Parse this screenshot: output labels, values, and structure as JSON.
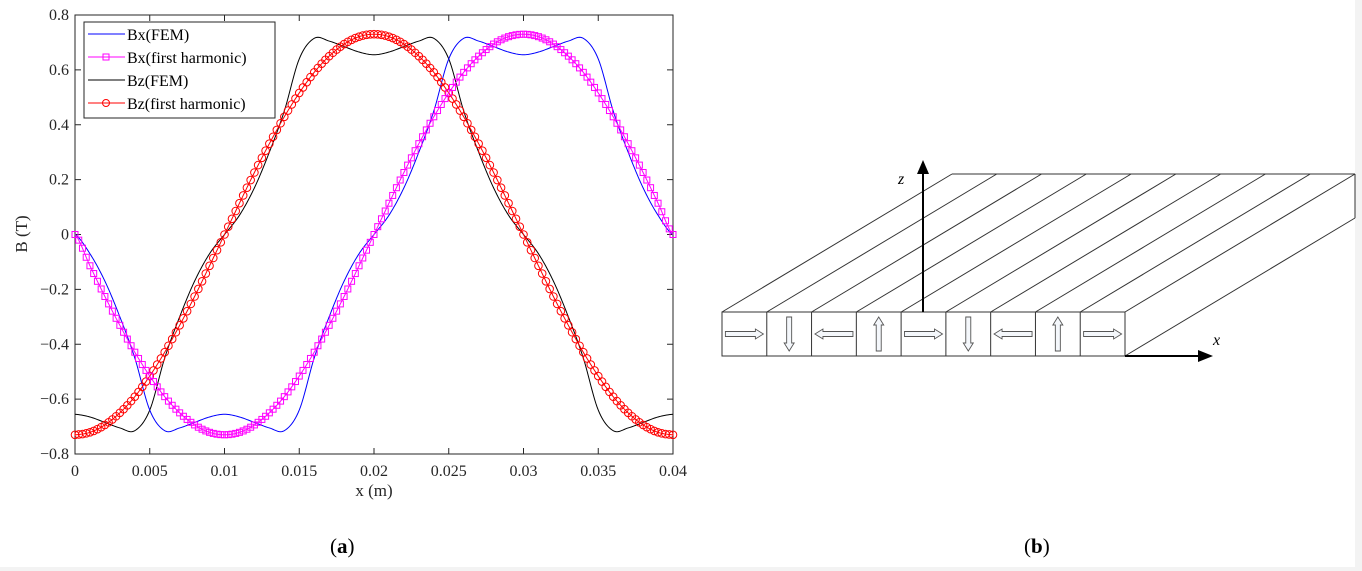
{
  "captions": {
    "a_open": "(",
    "a_letter": "a",
    "a_close": ")",
    "b_open": "(",
    "b_letter": "b",
    "b_close": ")"
  },
  "colors": {
    "bx_fem": "#0000ff",
    "bx_h1": "#ff00ff",
    "bz_fem": "#000000",
    "bz_h1": "#ff0000",
    "axis": "#262626"
  },
  "chart_data": {
    "type": "line",
    "title": "",
    "xlabel": "x (m)",
    "ylabel": "B (T)",
    "xlim": [
      0,
      0.04
    ],
    "ylim": [
      -0.8,
      0.8
    ],
    "xticks": [
      "0",
      "0.005",
      "0.01",
      "0.015",
      "0.02",
      "0.025",
      "0.03",
      "0.035",
      "0.04"
    ],
    "yticks": [
      "0.8",
      "0.6",
      "0.4",
      "0.2",
      "0",
      "-0.2",
      "-0.4",
      "-0.6",
      "-0.8"
    ],
    "grid": false,
    "legend_position": "upper-left",
    "x": [
      0,
      0.001,
      0.002,
      0.003,
      0.004,
      0.005,
      0.006,
      0.007,
      0.008,
      0.009,
      0.01,
      0.011,
      0.012,
      0.013,
      0.014,
      0.015,
      0.016,
      0.017,
      0.018,
      0.019,
      0.02,
      0.021,
      0.022,
      0.023,
      0.024,
      0.025,
      0.026,
      0.027,
      0.028,
      0.029,
      0.03,
      0.031,
      0.032,
      0.033,
      0.034,
      0.035,
      0.036,
      0.037,
      0.038,
      0.039,
      0.04
    ],
    "series": [
      {
        "name": "Bx(FEM)",
        "marker": "none",
        "color": "#0000ff",
        "values": [
          0,
          -0.07,
          -0.17,
          -0.3,
          -0.45,
          -0.64,
          -0.715,
          -0.705,
          -0.685,
          -0.665,
          -0.655,
          -0.665,
          -0.685,
          -0.705,
          -0.715,
          -0.64,
          -0.45,
          -0.3,
          -0.17,
          -0.07,
          0,
          0.07,
          0.17,
          0.3,
          0.45,
          0.64,
          0.715,
          0.705,
          0.685,
          0.665,
          0.655,
          0.665,
          0.685,
          0.705,
          0.715,
          0.64,
          0.45,
          0.3,
          0.17,
          0.07,
          0
        ]
      },
      {
        "name": "Bx(first harmonic)",
        "marker": "square",
        "color": "#ff00ff",
        "values": [
          0,
          -0.114,
          -0.226,
          -0.331,
          -0.429,
          -0.516,
          -0.591,
          -0.65,
          -0.694,
          -0.721,
          -0.73,
          -0.721,
          -0.694,
          -0.65,
          -0.591,
          -0.516,
          -0.429,
          -0.331,
          -0.226,
          -0.114,
          0,
          0.114,
          0.226,
          0.331,
          0.429,
          0.516,
          0.591,
          0.65,
          0.694,
          0.721,
          0.73,
          0.721,
          0.694,
          0.65,
          0.591,
          0.516,
          0.429,
          0.331,
          0.226,
          0.114,
          0
        ]
      },
      {
        "name": "Bz(FEM)",
        "marker": "none",
        "color": "#000000",
        "values": [
          -0.655,
          -0.665,
          -0.685,
          -0.705,
          -0.715,
          -0.64,
          -0.45,
          -0.3,
          -0.17,
          -0.07,
          0,
          0.07,
          0.17,
          0.3,
          0.45,
          0.64,
          0.715,
          0.705,
          0.685,
          0.665,
          0.655,
          0.665,
          0.685,
          0.705,
          0.715,
          0.64,
          0.45,
          0.3,
          0.17,
          0.07,
          0,
          -0.07,
          -0.17,
          -0.3,
          -0.45,
          -0.64,
          -0.715,
          -0.705,
          -0.685,
          -0.665,
          -0.655
        ]
      },
      {
        "name": "Bz(first harmonic)",
        "marker": "circle",
        "color": "#ff0000",
        "values": [
          -0.73,
          -0.721,
          -0.694,
          -0.65,
          -0.591,
          -0.516,
          -0.429,
          -0.331,
          -0.226,
          -0.114,
          0,
          0.114,
          0.226,
          0.331,
          0.429,
          0.516,
          0.591,
          0.65,
          0.694,
          0.721,
          0.73,
          0.721,
          0.694,
          0.65,
          0.591,
          0.516,
          0.429,
          0.331,
          0.226,
          0.114,
          0,
          -0.114,
          -0.226,
          -0.331,
          -0.429,
          -0.516,
          -0.591,
          -0.65,
          -0.694,
          -0.721,
          -0.73
        ]
      }
    ]
  },
  "diagram": {
    "z_label": "z",
    "x_label": "x",
    "magnet_count": 9,
    "arrow_directions": [
      "right",
      "down",
      "left",
      "up",
      "right",
      "down",
      "left",
      "up",
      "right"
    ]
  }
}
